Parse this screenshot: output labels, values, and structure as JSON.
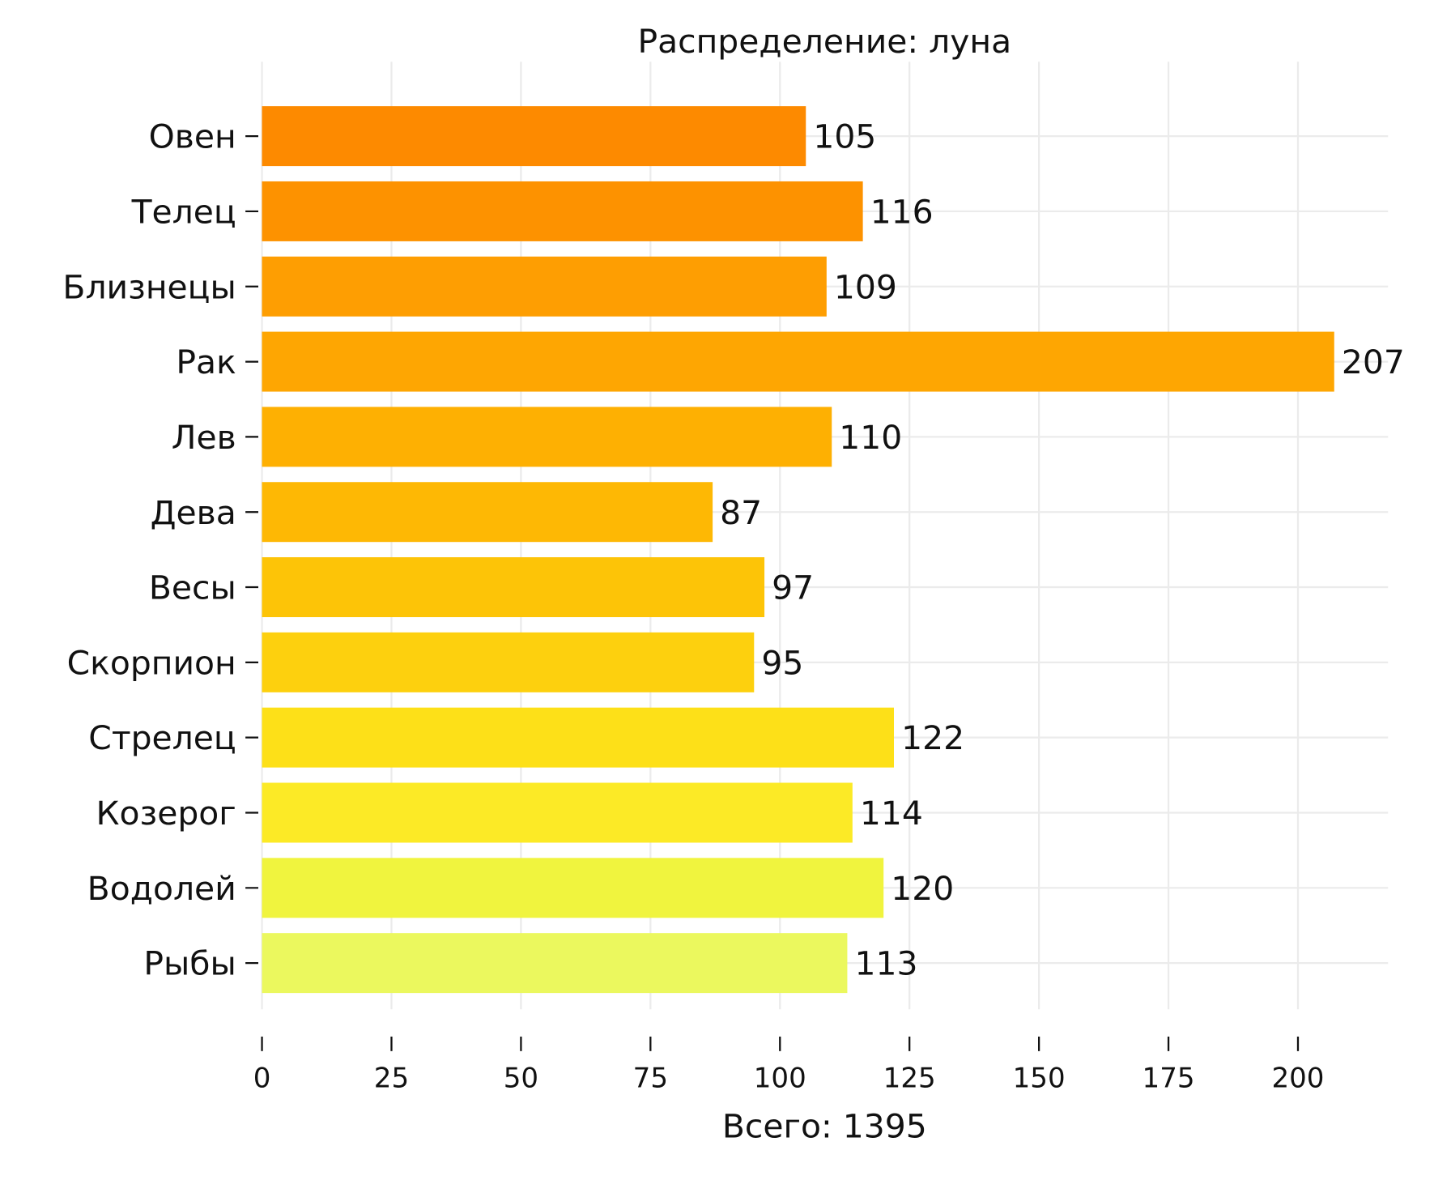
{
  "chart_data": {
    "type": "bar",
    "orientation": "horizontal",
    "title": "Распределение: луна",
    "xlabel": "Всего: 1395",
    "ylabel": "",
    "categories": [
      "Овен",
      "Телец",
      "Близнецы",
      "Рак",
      "Лев",
      "Дева",
      "Весы",
      "Скорпион",
      "Стрелец",
      "Козерог",
      "Водолей",
      "Рыбы"
    ],
    "values": [
      105,
      116,
      109,
      207,
      110,
      87,
      97,
      95,
      122,
      114,
      120,
      113
    ],
    "colors": [
      "#fd8a00",
      "#fd9200",
      "#fe9e02",
      "#fea602",
      "#feb002",
      "#feb804",
      "#fdc407",
      "#fdd00e",
      "#fde018",
      "#fcea26",
      "#f0f43e",
      "#ebf85e"
    ],
    "xticks": [
      "0",
      "25",
      "50",
      "75",
      "100",
      "125",
      "150",
      "175",
      "200"
    ],
    "xlim": [
      0,
      218
    ],
    "grid": true,
    "legend": "none"
  }
}
